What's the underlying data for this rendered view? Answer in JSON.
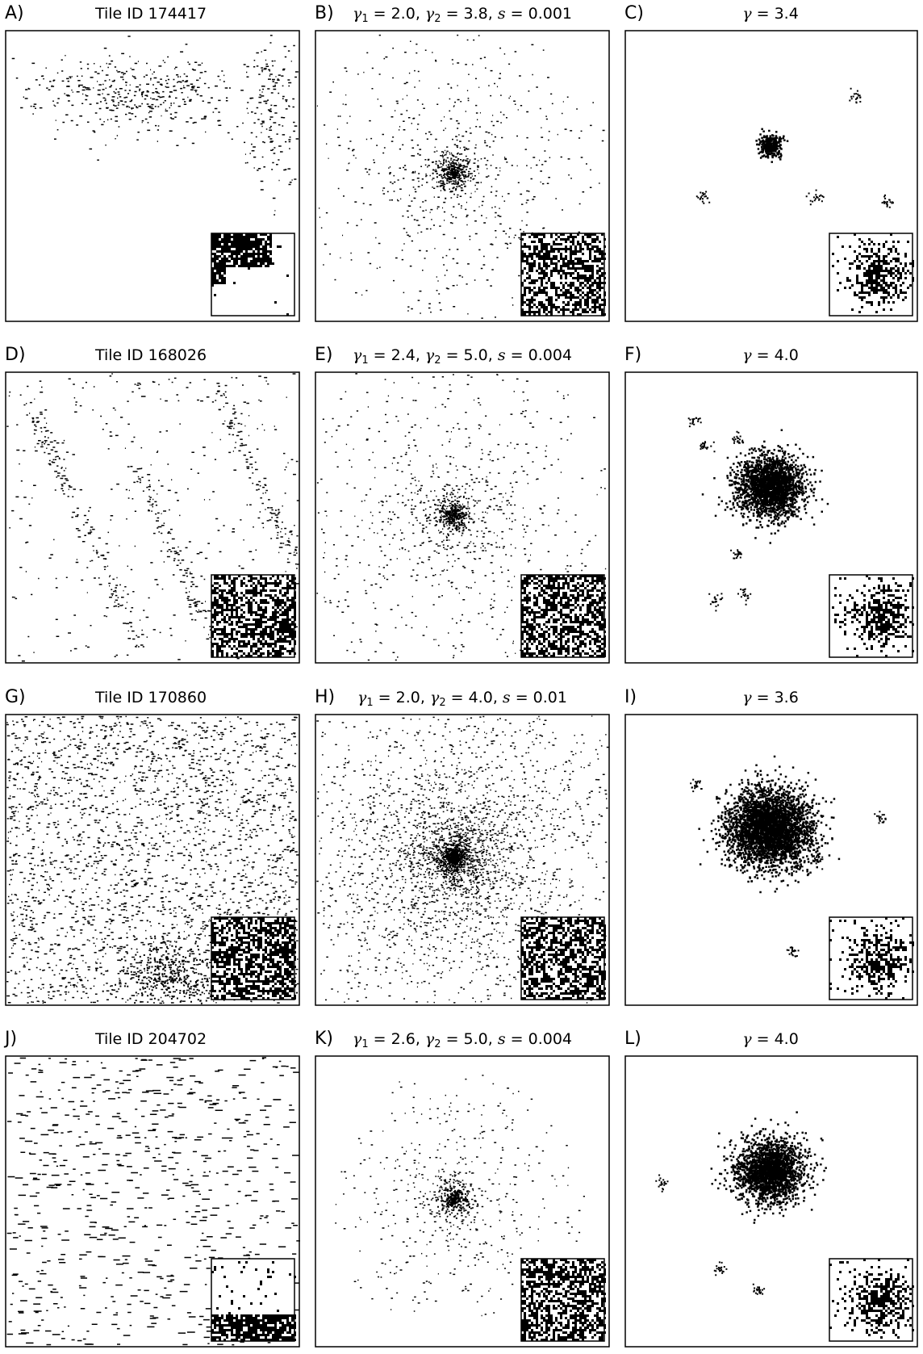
{
  "panels": [
    {
      "letter": "A)",
      "title": "Tile ID 174417",
      "kind": "real",
      "seed": 11
    },
    {
      "letter": "B)",
      "gamma1": "2.0",
      "gamma2": "3.8",
      "s": "0.001",
      "kind": "model2",
      "seed": 21
    },
    {
      "letter": "C)",
      "gamma": "3.4",
      "kind": "model1",
      "seed": 31
    },
    {
      "letter": "D)",
      "title": "Tile ID 168026",
      "kind": "real",
      "seed": 41
    },
    {
      "letter": "E)",
      "gamma1": "2.4",
      "gamma2": "5.0",
      "s": "0.004",
      "kind": "model2",
      "seed": 51
    },
    {
      "letter": "F)",
      "gamma": "4.0",
      "kind": "model1",
      "seed": 61
    },
    {
      "letter": "G)",
      "title": "Tile ID 170860",
      "kind": "real",
      "seed": 71
    },
    {
      "letter": "H)",
      "gamma1": "2.0",
      "gamma2": "4.0",
      "s": "0.01",
      "kind": "model2",
      "seed": 81
    },
    {
      "letter": "I)",
      "gamma": "3.6",
      "kind": "model1",
      "seed": 91
    },
    {
      "letter": "J)",
      "title": "Tile ID 204702",
      "kind": "real",
      "seed": 101
    },
    {
      "letter": "K)",
      "gamma1": "2.6",
      "gamma2": "5.0",
      "s": "0.004",
      "kind": "model2",
      "seed": 111
    },
    {
      "letter": "L)",
      "gamma": "4.0",
      "kind": "model1",
      "seed": 121
    }
  ],
  "symbols": {
    "gamma": "γ",
    "equals": " = ",
    "sep": ", ",
    "s": "s",
    "sub1": "1",
    "sub2": "2"
  }
}
